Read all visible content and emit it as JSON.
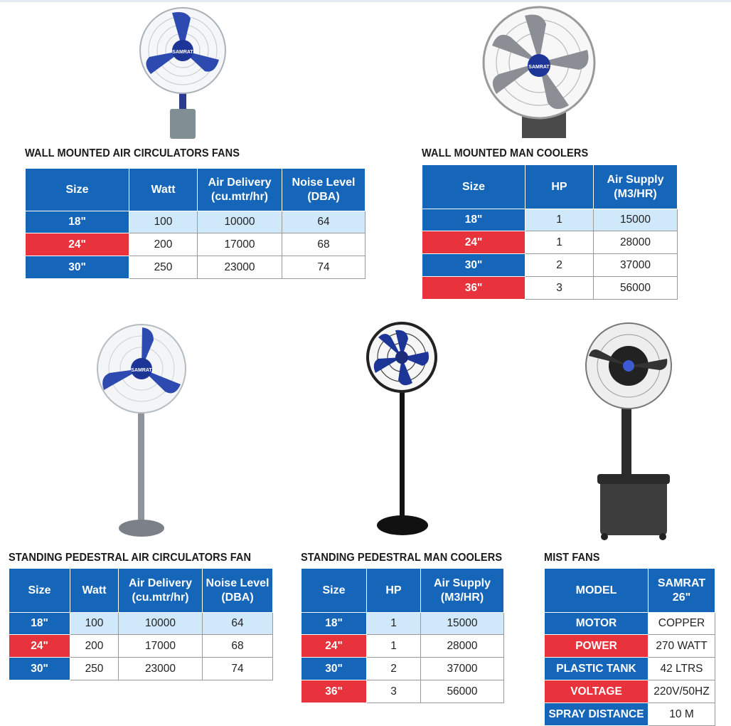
{
  "colors": {
    "blue": "#1565b8",
    "red": "#e8323c",
    "highlight": "#cfe8fa"
  },
  "brand": "SAMRAT",
  "wall_air": {
    "title": "WALL MOUNTED AIR CIRCULATORS FANS",
    "headers": [
      "Size",
      "Watt",
      "Air Delivery (cu.mtr/hr)",
      "Noise Level (DBA)"
    ],
    "rows": [
      [
        "18\"",
        "100",
        "10000",
        "64"
      ],
      [
        "24\"",
        "200",
        "17000",
        "68"
      ],
      [
        "30\"",
        "250",
        "23000",
        "74"
      ]
    ]
  },
  "wall_man": {
    "title": "WALL MOUNTED MAN COOLERS",
    "headers": [
      "Size",
      "HP",
      "Air Supply (M3/HR)"
    ],
    "rows": [
      [
        "18\"",
        "1",
        "15000"
      ],
      [
        "24\"",
        "1",
        "28000"
      ],
      [
        "30\"",
        "2",
        "37000"
      ],
      [
        "36\"",
        "3",
        "56000"
      ]
    ]
  },
  "stand_air": {
    "title": "STANDING PEDESTRAL AIR CIRCULATORS FAN",
    "headers": [
      "Size",
      "Watt",
      "Air Delivery (cu.mtr/hr)",
      "Noise Level (DBA)"
    ],
    "rows": [
      [
        "18\"",
        "100",
        "10000",
        "64"
      ],
      [
        "24\"",
        "200",
        "17000",
        "68"
      ],
      [
        "30\"",
        "250",
        "23000",
        "74"
      ]
    ]
  },
  "stand_man": {
    "title": "STANDING PEDESTRAL MAN COOLERS",
    "headers": [
      "Size",
      "HP",
      "Air Supply (M3/HR)"
    ],
    "rows": [
      [
        "18\"",
        "1",
        "15000"
      ],
      [
        "24\"",
        "1",
        "28000"
      ],
      [
        "30\"",
        "2",
        "37000"
      ],
      [
        "36\"",
        "3",
        "56000"
      ]
    ]
  },
  "mist": {
    "title": "MIST FANS",
    "headers": [
      "MODEL",
      "SAMRAT 26\""
    ],
    "rows": [
      [
        "MOTOR",
        "COPPER"
      ],
      [
        "POWER",
        "270 WATT"
      ],
      [
        "PLASTIC TANK",
        "42 LTRS"
      ],
      [
        "VOLTAGE",
        "220V/50HZ"
      ],
      [
        "SPRAY DISTANCE",
        "10 M"
      ]
    ]
  }
}
